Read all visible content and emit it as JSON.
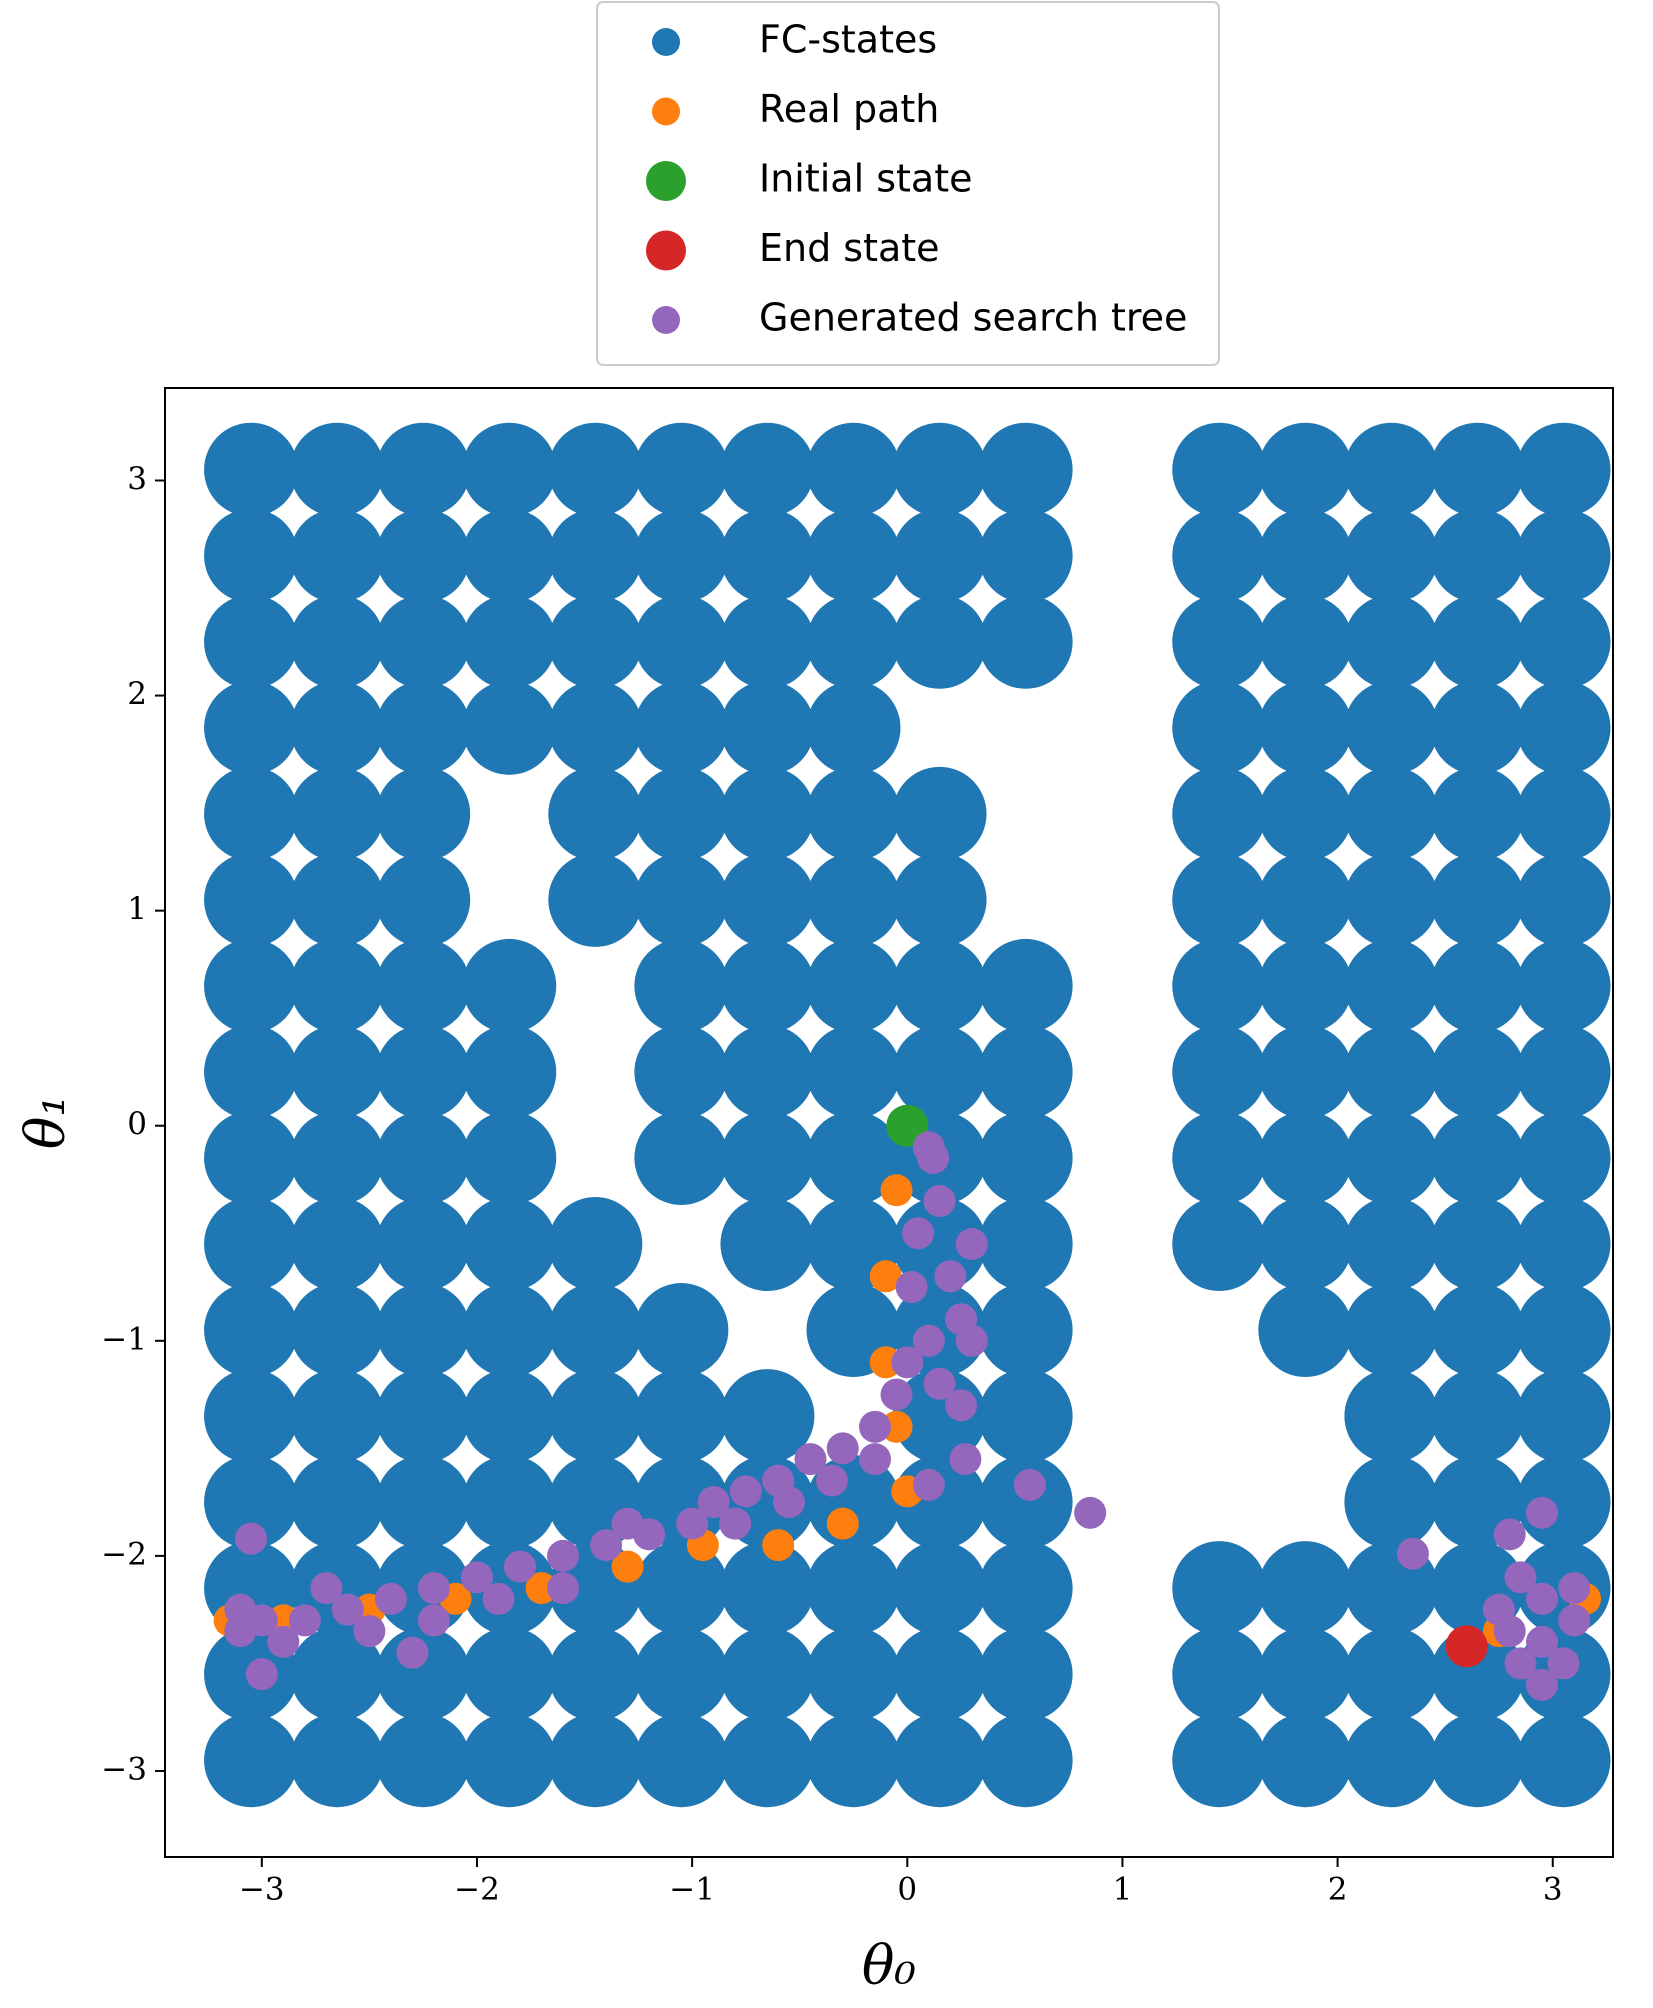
{
  "chart_data": {
    "type": "scatter",
    "xlabel": "θ₀",
    "ylabel": "θ₁",
    "xlim": [
      -3.45,
      3.28
    ],
    "ylim": [
      -3.4,
      3.43
    ],
    "xticks": [
      {
        "value": -3,
        "label": "−3"
      },
      {
        "value": -2,
        "label": "−2"
      },
      {
        "value": -1,
        "label": "−1"
      },
      0,
      1,
      2,
      3
    ],
    "yticks": [
      {
        "value": -3,
        "label": "−3"
      },
      {
        "value": -2,
        "label": "−2"
      },
      {
        "value": -1,
        "label": "−1"
      },
      0,
      1,
      2,
      3
    ],
    "grid": false,
    "legend": "upper center",
    "series": [
      {
        "name": "FC-states",
        "color": "#1f77b4",
        "x": [
          -3.05,
          -2.65,
          -2.25,
          -1.85,
          -1.45,
          -1.05,
          -0.65,
          -0.25,
          0.15,
          0.55,
          1.45,
          1.85,
          2.25,
          2.65,
          3.05,
          -3.05,
          -2.65,
          -2.25,
          -1.85,
          -1.45,
          -1.05,
          -0.65,
          -0.25,
          0.15,
          0.55,
          1.45,
          1.85,
          2.25,
          2.65,
          3.05,
          -3.05,
          -2.65,
          -2.25,
          -1.85,
          -1.45,
          -1.05,
          -0.65,
          -0.25,
          0.15,
          0.55,
          1.45,
          1.85,
          2.25,
          2.65,
          3.05,
          -3.05,
          -2.65,
          -2.25,
          -1.85,
          -1.45,
          -1.05,
          -0.65,
          -0.25,
          1.45,
          1.85,
          2.25,
          2.65,
          3.05,
          -3.05,
          -2.65,
          -2.25,
          -1.45,
          -1.05,
          -0.65,
          -0.25,
          0.15,
          1.45,
          1.85,
          2.25,
          2.65,
          3.05,
          -3.05,
          -2.65,
          -2.25,
          -1.45,
          -1.05,
          -0.65,
          -0.25,
          0.15,
          1.45,
          1.85,
          2.25,
          2.65,
          3.05,
          -3.05,
          -2.65,
          -2.25,
          -1.85,
          -1.05,
          -0.65,
          -0.25,
          0.15,
          0.55,
          1.45,
          1.85,
          2.25,
          2.65,
          3.05,
          -3.05,
          -2.65,
          -2.25,
          -1.85,
          -1.05,
          -0.65,
          -0.25,
          0.15,
          0.55,
          1.45,
          1.85,
          2.25,
          2.65,
          3.05,
          -3.05,
          -2.65,
          -2.25,
          -1.85,
          -1.05,
          -0.65,
          -0.25,
          0.15,
          0.55,
          1.45,
          1.85,
          2.25,
          2.65,
          3.05,
          -3.05,
          -2.65,
          -2.25,
          -1.85,
          -1.45,
          -0.65,
          -0.25,
          0.15,
          0.55,
          1.45,
          1.85,
          2.25,
          2.65,
          3.05,
          -3.05,
          -2.65,
          -2.25,
          -1.85,
          -1.45,
          -1.05,
          -0.25,
          0.15,
          0.55,
          1.85,
          2.25,
          2.65,
          3.05,
          -3.05,
          -2.65,
          -2.25,
          -1.85,
          -1.45,
          -1.05,
          -0.65,
          0.15,
          0.55,
          2.25,
          2.65,
          3.05,
          -3.05,
          -2.65,
          -2.25,
          -1.85,
          -1.45,
          -1.05,
          -0.65,
          -0.25,
          0.15,
          0.55,
          2.25,
          2.65,
          3.05,
          -3.05,
          -2.65,
          -2.25,
          -1.85,
          -1.45,
          -1.05,
          -0.65,
          -0.25,
          0.15,
          0.55,
          1.45,
          1.85,
          2.25,
          2.65,
          3.05,
          -3.05,
          -2.65,
          -2.25,
          -1.85,
          -1.45,
          -1.05,
          -0.65,
          -0.25,
          0.15,
          0.55,
          1.45,
          1.85,
          2.25,
          2.65,
          3.05,
          -3.05,
          -2.65,
          -2.25,
          -1.85,
          -1.45,
          -1.05,
          -0.65,
          -0.25,
          0.15,
          0.55,
          1.45,
          1.85,
          2.25,
          2.65,
          3.05
        ],
        "y": [
          3.05,
          3.05,
          3.05,
          3.05,
          3.05,
          3.05,
          3.05,
          3.05,
          3.05,
          3.05,
          3.05,
          3.05,
          3.05,
          3.05,
          3.05,
          2.65,
          2.65,
          2.65,
          2.65,
          2.65,
          2.65,
          2.65,
          2.65,
          2.65,
          2.65,
          2.65,
          2.65,
          2.65,
          2.65,
          2.65,
          2.25,
          2.25,
          2.25,
          2.25,
          2.25,
          2.25,
          2.25,
          2.25,
          2.25,
          2.25,
          2.25,
          2.25,
          2.25,
          2.25,
          2.25,
          1.85,
          1.85,
          1.85,
          1.85,
          1.85,
          1.85,
          1.85,
          1.85,
          1.85,
          1.85,
          1.85,
          1.85,
          1.85,
          1.45,
          1.45,
          1.45,
          1.45,
          1.45,
          1.45,
          1.45,
          1.45,
          1.45,
          1.45,
          1.45,
          1.45,
          1.45,
          1.05,
          1.05,
          1.05,
          1.05,
          1.05,
          1.05,
          1.05,
          1.05,
          1.05,
          1.05,
          1.05,
          1.05,
          1.05,
          0.65,
          0.65,
          0.65,
          0.65,
          0.65,
          0.65,
          0.65,
          0.65,
          0.65,
          0.65,
          0.65,
          0.65,
          0.65,
          0.65,
          0.25,
          0.25,
          0.25,
          0.25,
          0.25,
          0.25,
          0.25,
          0.25,
          0.25,
          0.25,
          0.25,
          0.25,
          0.25,
          0.25,
          -0.15,
          -0.15,
          -0.15,
          -0.15,
          -0.15,
          -0.15,
          -0.15,
          -0.15,
          -0.15,
          -0.15,
          -0.15,
          -0.15,
          -0.15,
          -0.15,
          -0.55,
          -0.55,
          -0.55,
          -0.55,
          -0.55,
          -0.55,
          -0.55,
          -0.55,
          -0.55,
          -0.55,
          -0.55,
          -0.55,
          -0.55,
          -0.55,
          -0.95,
          -0.95,
          -0.95,
          -0.95,
          -0.95,
          -0.95,
          -0.95,
          -0.95,
          -0.95,
          -0.95,
          -0.95,
          -0.95,
          -0.95,
          -1.35,
          -1.35,
          -1.35,
          -1.35,
          -1.35,
          -1.35,
          -1.35,
          -1.35,
          -1.35,
          -1.35,
          -1.35,
          -1.35,
          -1.75,
          -1.75,
          -1.75,
          -1.75,
          -1.75,
          -1.75,
          -1.75,
          -1.75,
          -1.75,
          -1.75,
          -1.75,
          -1.75,
          -1.75,
          -2.15,
          -2.15,
          -2.15,
          -2.15,
          -2.15,
          -2.15,
          -2.15,
          -2.15,
          -2.15,
          -2.15,
          -2.15,
          -2.15,
          -2.15,
          -2.15,
          -2.15,
          -2.55,
          -2.55,
          -2.55,
          -2.55,
          -2.55,
          -2.55,
          -2.55,
          -2.55,
          -2.55,
          -2.55,
          -2.55,
          -2.55,
          -2.55,
          -2.55,
          -2.55,
          -2.95,
          -2.95,
          -2.95,
          -2.95,
          -2.95,
          -2.95,
          -2.95,
          -2.95,
          -2.95,
          -2.95,
          -2.95,
          -2.95,
          -2.95,
          -2.95,
          -2.95
        ]
      },
      {
        "name": "Real path",
        "color": "#ff7f0e",
        "x": [
          0,
          -0.05,
          -0.1,
          -0.1,
          -0.05,
          0,
          -0.3,
          -0.6,
          -0.95,
          -1.3,
          -1.7,
          -2.1,
          -2.5,
          -2.9,
          -3.15,
          3.15,
          2.75
        ],
        "y": [
          0,
          -0.3,
          -0.7,
          -1.1,
          -1.4,
          -1.7,
          -1.85,
          -1.95,
          -1.95,
          -2.05,
          -2.15,
          -2.2,
          -2.25,
          -2.3,
          -2.3,
          -2.2,
          -2.35
        ]
      },
      {
        "name": "Initial state",
        "color": "#2ca02c",
        "x": [
          0
        ],
        "y": [
          0
        ]
      },
      {
        "name": "End state",
        "color": "#d62728",
        "x": [
          2.6
        ],
        "y": [
          -2.42
        ]
      },
      {
        "name": "Generated search tree",
        "color": "#9467bd",
        "x": [
          0.1,
          0.12,
          0.15,
          0.05,
          0.3,
          0.2,
          0.02,
          0.25,
          0.1,
          0.3,
          0.15,
          0,
          0.25,
          -0.05,
          -0.15,
          -0.3,
          -0.45,
          -0.6,
          -0.75,
          -0.9,
          -1.0,
          -1.2,
          -1.4,
          -1.6,
          -1.8,
          -2.0,
          -2.2,
          -2.4,
          -2.6,
          -2.8,
          -3.0,
          -3.1,
          -3.1,
          -2.9,
          -2.7,
          -2.5,
          -2.2,
          -1.9,
          -1.6,
          -1.3,
          -0.8,
          -0.55,
          -0.35,
          -0.15,
          0.1,
          0.27,
          0.57,
          0.85,
          -3.05,
          -2.3,
          -3.0,
          2.95,
          2.8,
          2.35,
          2.85,
          2.95,
          3.1,
          2.8,
          2.95,
          3.05,
          2.85,
          2.95,
          3.1,
          2.75
        ],
        "y": [
          -0.1,
          -0.15,
          -0.35,
          -0.5,
          -0.55,
          -0.7,
          -0.75,
          -0.9,
          -1.0,
          -1.0,
          -1.2,
          -1.1,
          -1.3,
          -1.25,
          -1.4,
          -1.5,
          -1.55,
          -1.65,
          -1.7,
          -1.75,
          -1.85,
          -1.9,
          -1.95,
          -2.0,
          -2.05,
          -2.1,
          -2.15,
          -2.2,
          -2.25,
          -2.3,
          -2.3,
          -2.35,
          -2.25,
          -2.4,
          -2.15,
          -2.35,
          -2.3,
          -2.2,
          -2.15,
          -1.85,
          -1.85,
          -1.75,
          -1.65,
          -1.55,
          -1.67,
          -1.55,
          -1.67,
          -1.8,
          -1.92,
          -2.45,
          -2.55,
          -1.8,
          -1.9,
          -1.99,
          -2.1,
          -2.2,
          -2.3,
          -2.35,
          -2.4,
          -2.5,
          -2.5,
          -2.6,
          -2.15,
          -2.25
        ]
      }
    ]
  }
}
